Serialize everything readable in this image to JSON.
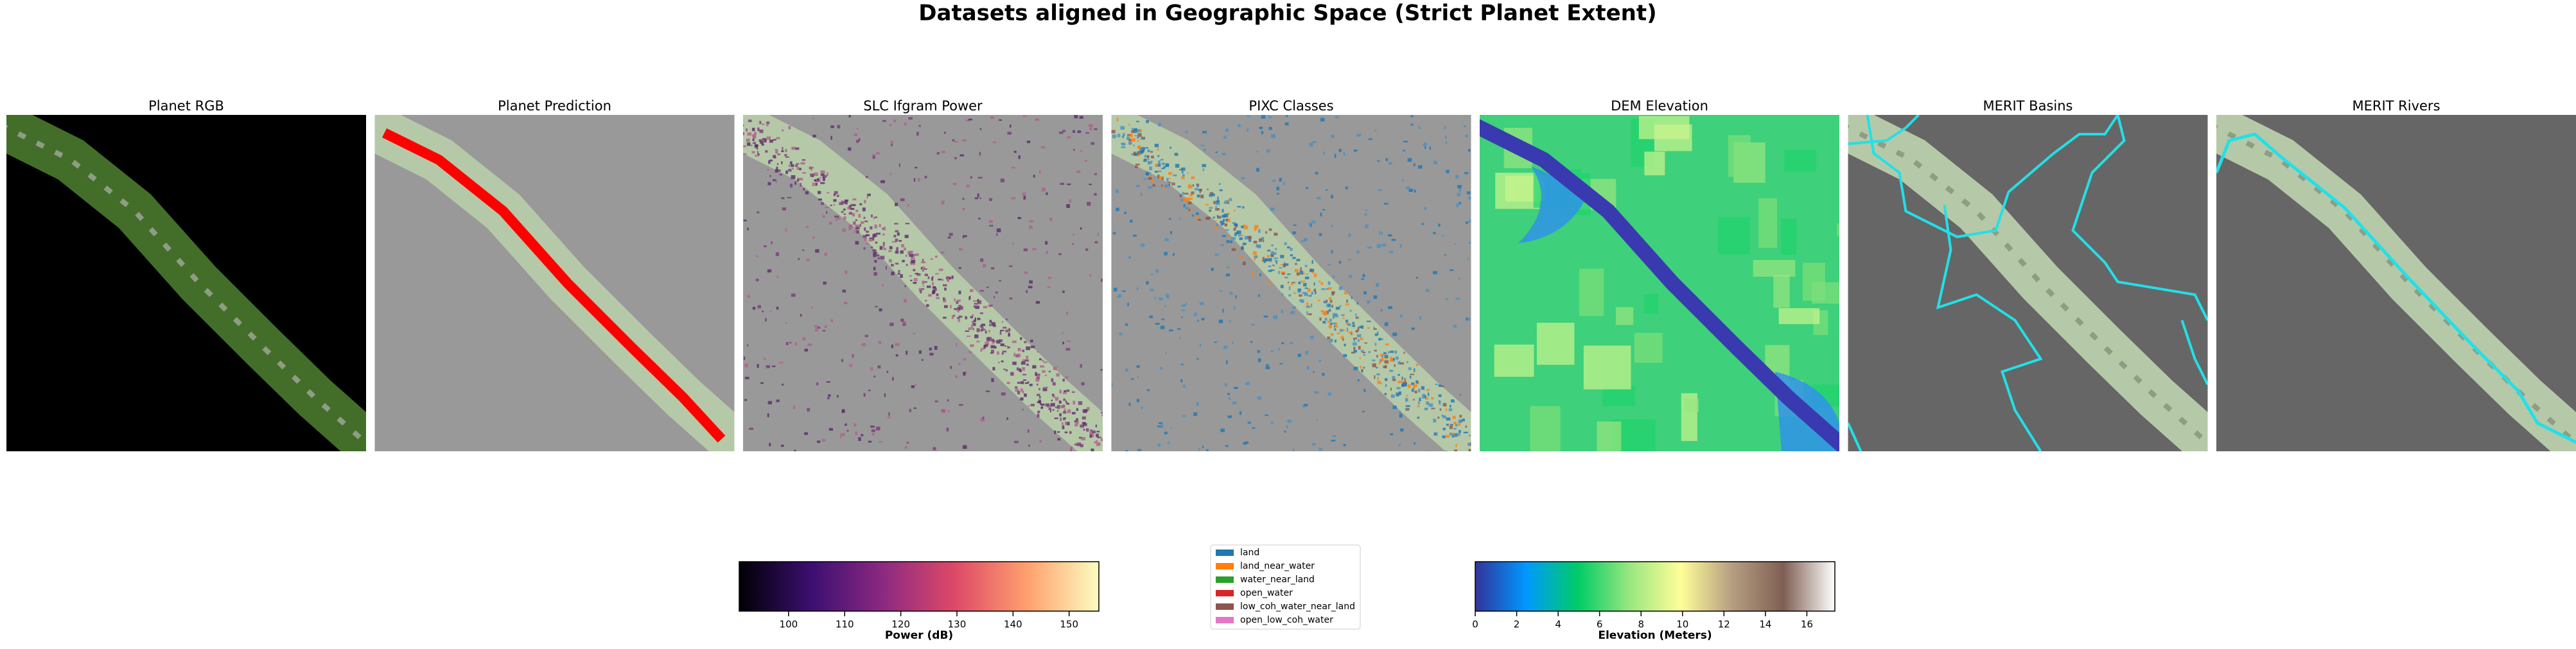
{
  "title": "Datasets aligned in Geographic Space (Strict Planet Extent)",
  "panels": [
    {
      "title": "Planet RGB"
    },
    {
      "title": "Planet Prediction"
    },
    {
      "title": "SLC Ifgram Power"
    },
    {
      "title": "PIXC Classes"
    },
    {
      "title": "DEM Elevation"
    },
    {
      "title": "MERIT Basins"
    },
    {
      "title": "MERIT Rivers"
    }
  ],
  "colorbars": [
    {
      "label": "Power (dB)",
      "xlim": [
        91.2,
        155.3
      ],
      "xticks": [
        100,
        110,
        120,
        130,
        140,
        150
      ],
      "colors": [
        "#000004",
        "#3b0f70",
        "#8c2981",
        "#de4968",
        "#fe9f6d",
        "#fcfdbf"
      ]
    },
    {
      "label": "Elevation (Meters)",
      "xlim": [
        0,
        17.35
      ],
      "xticks": [
        0,
        2,
        4,
        6,
        8,
        10,
        12,
        14,
        16
      ],
      "colors": [
        "#333399",
        "#0099ff",
        "#00cc66",
        "#99e67f",
        "#fffe99",
        "#b59e81",
        "#7f5f53",
        "#ffffff"
      ]
    }
  ],
  "legend": {
    "entries": [
      {
        "name": "land",
        "color": "#1f77b4"
      },
      {
        "name": "land_near_water",
        "color": "#ff7f0e"
      },
      {
        "name": "water_near_land",
        "color": "#2ca02c"
      },
      {
        "name": "open_water",
        "color": "#d62728"
      },
      {
        "name": "low_coh_water_near_land",
        "color": "#8c564b"
      },
      {
        "name": "open_low_coh_water",
        "color": "#e377c2"
      }
    ]
  }
}
